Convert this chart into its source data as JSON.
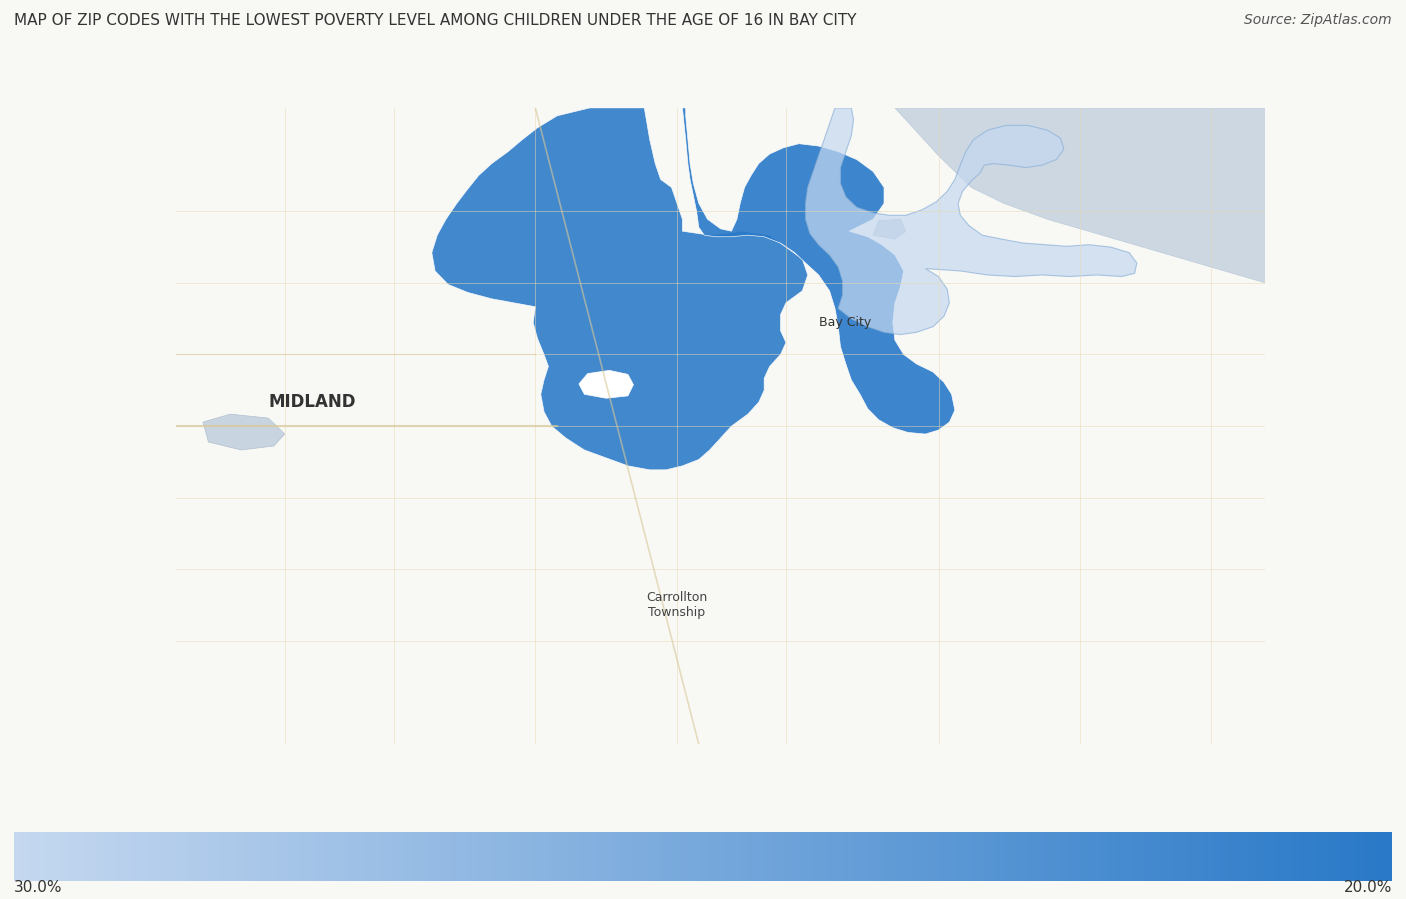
{
  "title": "MAP OF ZIP CODES WITH THE LOWEST POVERTY LEVEL AMONG CHILDREN UNDER THE AGE OF 16 IN BAY CITY",
  "source_text": "Source: ZipAtlas.com",
  "colorbar_left_label": "30.0%",
  "colorbar_right_label": "20.0%",
  "background_color": "#f5f5f0",
  "map_bg_color": "#e8e8e0",
  "title_fontsize": 11,
  "source_fontsize": 10,
  "label_fontsize": 11,
  "dark_blue": "#2979c8",
  "light_blue": "#c5d8f0",
  "water_color": "#c8d8e8",
  "region_label_bay_city": "Bay City",
  "region_label_carrollton": "Carrollton\nTownship",
  "region_label_midland": "MIDLAND",
  "colorbar_color_left": "#5599e8",
  "colorbar_color_right": "#c5d8f0",
  "figsize": [
    14.06,
    8.99
  ],
  "dpi": 100
}
